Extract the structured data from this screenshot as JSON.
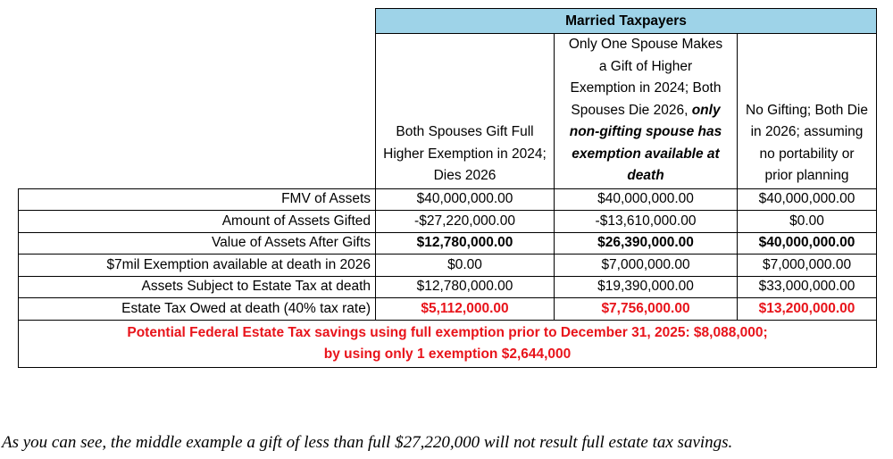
{
  "table": {
    "group_header": "Married Taxpayers",
    "columns": [
      [
        "Both Spouses Gift Full Higher Exemption in 2024; Dies 2026"
      ],
      [
        "Only One Spouse Makes a Gift of Higher Exemption in 2024; Both Spouses Die 2026, ",
        "only non-gifting spouse has exemption available at death"
      ],
      [
        "No Gifting; Both Die in 2026; assuming no portability or prior planning"
      ]
    ],
    "rows": [
      [
        "FMV of Assets",
        "$40,000,000.00",
        "$40,000,000.00",
        "$40,000,000.00"
      ],
      [
        "Amount of Assets Gifted",
        "-$27,220,000.00",
        "-$13,610,000.00",
        "$0.00"
      ],
      [
        "Value of Assets After Gifts",
        "$12,780,000.00",
        "$26,390,000.00",
        "$40,000,000.00"
      ],
      [
        "$7mil Exemption available at death in 2026",
        "$0.00",
        "$7,000,000.00",
        "$7,000,000.00"
      ],
      [
        "Assets Subject to Estate Tax at death",
        "$12,780,000.00",
        "$19,390,000.00",
        "$33,000,000.00"
      ],
      [
        "Estate Tax Owed at death (40% tax rate)",
        "$5,112,000.00",
        "$7,756,000.00",
        "$13,200,000.00"
      ]
    ],
    "summary": [
      "Potential Federal Estate Tax savings using full exemption prior to December 31, 2025: $8,088,000;",
      "by using only 1 exemption $2,644,000"
    ]
  },
  "note": "As you can see, the middle example a gift of less than full $27,220,000 will not result full estate tax savings."
}
